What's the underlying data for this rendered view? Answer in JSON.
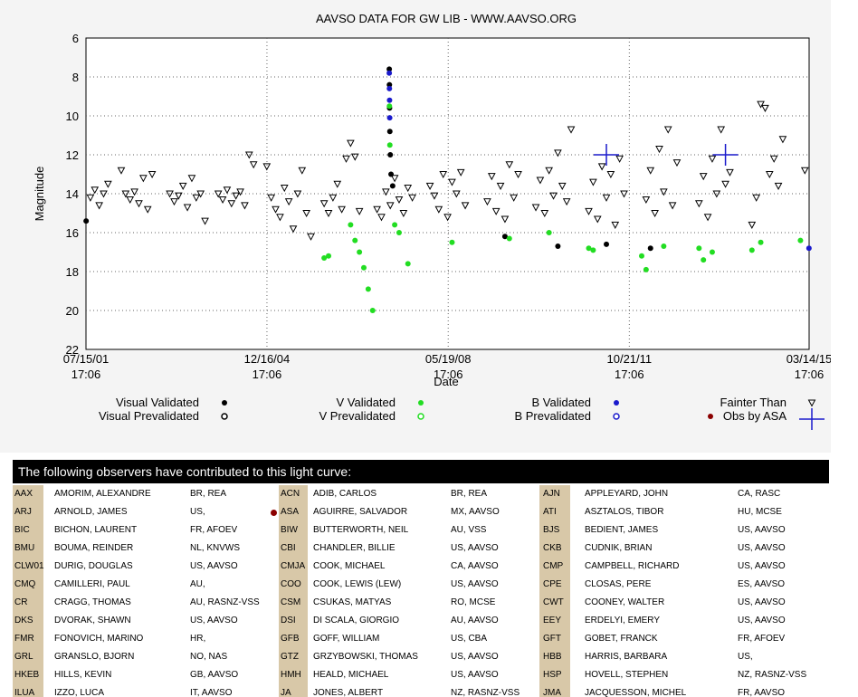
{
  "chart_data": {
    "type": "scatter",
    "title": "AAVSO DATA FOR GW LIB - WWW.AAVSO.ORG",
    "ylabel": "Magnitude",
    "xlabel": "Date",
    "x_ticks": [
      "07/15/01 17:06",
      "12/16/04 17:06",
      "05/19/08 17:06",
      "10/21/11 17:06",
      "03/14/15 17:06"
    ],
    "xlim": [
      "2001-07-15",
      "2015-03-14"
    ],
    "ylim": [
      22,
      6
    ],
    "y_inverted": true,
    "y_ticks": [
      6,
      8,
      10,
      12,
      14,
      16,
      18,
      20,
      22
    ],
    "grid": true,
    "series": [
      {
        "name": "Fainter Than",
        "marker": "open-triangle-down",
        "color": "#000000",
        "points": [
          [
            "2001-08",
            "14.2"
          ],
          [
            "2001-09",
            "13.8"
          ],
          [
            "2001-10",
            "14.6"
          ],
          [
            "2001-11",
            "14.0"
          ],
          [
            "2001-12",
            "13.5"
          ],
          [
            "2002-03",
            "12.8"
          ],
          [
            "2002-04",
            "14.0"
          ],
          [
            "2002-05",
            "14.3"
          ],
          [
            "2002-06",
            "13.9"
          ],
          [
            "2002-07",
            "14.5"
          ],
          [
            "2002-08",
            "13.2"
          ],
          [
            "2002-09",
            "14.8"
          ],
          [
            "2002-10",
            "13.0"
          ],
          [
            "2003-02",
            "14.0"
          ],
          [
            "2003-03",
            "14.4"
          ],
          [
            "2003-04",
            "14.1"
          ],
          [
            "2003-05",
            "13.6"
          ],
          [
            "2003-06",
            "14.7"
          ],
          [
            "2003-07",
            "13.2"
          ],
          [
            "2003-08",
            "14.2"
          ],
          [
            "2003-09",
            "14.0"
          ],
          [
            "2003-10",
            "15.4"
          ],
          [
            "2004-01",
            "14.0"
          ],
          [
            "2004-02",
            "14.3"
          ],
          [
            "2004-03",
            "13.8"
          ],
          [
            "2004-04",
            "14.5"
          ],
          [
            "2004-05",
            "14.1"
          ],
          [
            "2004-06",
            "13.9"
          ],
          [
            "2004-07",
            "14.6"
          ],
          [
            "2004-08",
            "12.0"
          ],
          [
            "2004-09",
            "12.5"
          ],
          [
            "2004-12",
            "12.6"
          ],
          [
            "2005-01",
            "14.2"
          ],
          [
            "2005-02",
            "14.8"
          ],
          [
            "2005-03",
            "15.2"
          ],
          [
            "2005-04",
            "13.7"
          ],
          [
            "2005-05",
            "14.4"
          ],
          [
            "2005-06",
            "15.8"
          ],
          [
            "2005-07",
            "14.0"
          ],
          [
            "2005-08",
            "12.8"
          ],
          [
            "2005-09",
            "15.0"
          ],
          [
            "2005-10",
            "16.2"
          ],
          [
            "2006-01",
            "14.5"
          ],
          [
            "2006-02",
            "15.0"
          ],
          [
            "2006-03",
            "14.2"
          ],
          [
            "2006-04",
            "13.5"
          ],
          [
            "2006-05",
            "14.8"
          ],
          [
            "2006-06",
            "12.2"
          ],
          [
            "2006-07",
            "11.4"
          ],
          [
            "2006-08",
            "12.1"
          ],
          [
            "2006-09",
            "14.9"
          ],
          [
            "2007-01",
            "14.8"
          ],
          [
            "2007-02",
            "15.2"
          ],
          [
            "2007-03",
            "13.9"
          ],
          [
            "2007-04",
            "14.6"
          ],
          [
            "2007-05",
            "13.2"
          ],
          [
            "2007-06",
            "14.3"
          ],
          [
            "2007-07",
            "15.0"
          ],
          [
            "2007-08",
            "13.7"
          ],
          [
            "2007-09",
            "14.2"
          ],
          [
            "2008-01",
            "13.6"
          ],
          [
            "2008-02",
            "14.1"
          ],
          [
            "2008-03",
            "14.8"
          ],
          [
            "2008-04",
            "13.0"
          ],
          [
            "2008-05",
            "15.2"
          ],
          [
            "2008-06",
            "13.4"
          ],
          [
            "2008-07",
            "14.0"
          ],
          [
            "2008-08",
            "12.9"
          ],
          [
            "2008-09",
            "14.6"
          ],
          [
            "2009-02",
            "14.4"
          ],
          [
            "2009-03",
            "13.1"
          ],
          [
            "2009-04",
            "14.9"
          ],
          [
            "2009-05",
            "13.6"
          ],
          [
            "2009-06",
            "15.3"
          ],
          [
            "2009-07",
            "12.5"
          ],
          [
            "2009-08",
            "14.2"
          ],
          [
            "2009-09",
            "13.0"
          ],
          [
            "2010-01",
            "14.7"
          ],
          [
            "2010-02",
            "13.3"
          ],
          [
            "2010-03",
            "15.0"
          ],
          [
            "2010-04",
            "12.8"
          ],
          [
            "2010-05",
            "14.1"
          ],
          [
            "2010-06",
            "11.9"
          ],
          [
            "2010-07",
            "13.6"
          ],
          [
            "2010-08",
            "14.4"
          ],
          [
            "2010-09",
            "10.7"
          ],
          [
            "2011-01",
            "14.9"
          ],
          [
            "2011-02",
            "13.4"
          ],
          [
            "2011-03",
            "15.3"
          ],
          [
            "2011-04",
            "12.6"
          ],
          [
            "2011-05",
            "14.2"
          ],
          [
            "2011-06",
            "13.0"
          ],
          [
            "2011-07",
            "15.6"
          ],
          [
            "2011-08",
            "12.2"
          ],
          [
            "2011-09",
            "14.0"
          ],
          [
            "2012-02",
            "14.3"
          ],
          [
            "2012-03",
            "12.8"
          ],
          [
            "2012-04",
            "15.0"
          ],
          [
            "2012-05",
            "11.7"
          ],
          [
            "2012-06",
            "13.9"
          ],
          [
            "2012-07",
            "10.7"
          ],
          [
            "2012-08",
            "14.6"
          ],
          [
            "2012-09",
            "12.4"
          ],
          [
            "2013-02",
            "14.5"
          ],
          [
            "2013-03",
            "13.1"
          ],
          [
            "2013-04",
            "15.2"
          ],
          [
            "2013-05",
            "12.2"
          ],
          [
            "2013-06",
            "14.0"
          ],
          [
            "2013-07",
            "10.7"
          ],
          [
            "2013-08",
            "13.5"
          ],
          [
            "2013-09",
            "12.9"
          ],
          [
            "2014-02",
            "15.6"
          ],
          [
            "2014-03",
            "14.2"
          ],
          [
            "2014-04",
            "9.4"
          ],
          [
            "2014-05",
            "9.6"
          ],
          [
            "2014-06",
            "13.0"
          ],
          [
            "2014-07",
            "12.2"
          ],
          [
            "2014-08",
            "13.6"
          ],
          [
            "2014-09",
            "11.2"
          ],
          [
            "2015-02",
            "12.8"
          ]
        ]
      },
      {
        "name": "Visual Validated",
        "marker": "filled-circle",
        "color": "#000000",
        "points": [
          [
            "2001-07-16",
            "15.4"
          ],
          [
            "2007-04-08",
            "7.6"
          ],
          [
            "2007-04-09",
            "8.4"
          ],
          [
            "2007-04-10",
            "9.6"
          ],
          [
            "2007-04-12",
            "10.8"
          ],
          [
            "2007-04-15",
            "12.0"
          ],
          [
            "2007-04-20",
            "13.0"
          ],
          [
            "2007-05-01",
            "13.6"
          ],
          [
            "2009-06",
            "16.2"
          ],
          [
            "2010-06",
            "16.7"
          ],
          [
            "2011-05",
            "16.6"
          ],
          [
            "2012-03",
            "16.8"
          ]
        ]
      },
      {
        "name": "V Validated",
        "marker": "filled-circle",
        "color": "#22dd22",
        "points": [
          [
            "2006-01",
            "17.3"
          ],
          [
            "2006-02",
            "17.2"
          ],
          [
            "2006-07",
            "15.6"
          ],
          [
            "2006-08",
            "16.4"
          ],
          [
            "2006-09",
            "17.0"
          ],
          [
            "2006-10",
            "17.8"
          ],
          [
            "2006-11",
            "18.9"
          ],
          [
            "2006-12",
            "20.0"
          ],
          [
            "2007-04-09",
            "9.5"
          ],
          [
            "2007-04-12",
            "11.5"
          ],
          [
            "2007-05",
            "15.6"
          ],
          [
            "2007-06",
            "16.0"
          ],
          [
            "2007-08",
            "17.6"
          ],
          [
            "2008-06",
            "16.5"
          ],
          [
            "2009-07",
            "16.3"
          ],
          [
            "2010-04",
            "16.0"
          ],
          [
            "2011-01",
            "16.8"
          ],
          [
            "2011-02",
            "16.9"
          ],
          [
            "2012-01",
            "17.2"
          ],
          [
            "2012-02",
            "17.9"
          ],
          [
            "2012-06",
            "16.7"
          ],
          [
            "2013-02",
            "16.8"
          ],
          [
            "2013-03",
            "17.4"
          ],
          [
            "2013-05",
            "17.0"
          ],
          [
            "2014-02",
            "16.9"
          ],
          [
            "2014-04",
            "16.5"
          ],
          [
            "2015-01",
            "16.4"
          ]
        ]
      },
      {
        "name": "B Validated",
        "marker": "filled-circle",
        "color": "#1a1acc",
        "points": [
          [
            "2007-04-08",
            "7.8"
          ],
          [
            "2007-04-09",
            "8.6"
          ],
          [
            "2007-04-10",
            "9.2"
          ],
          [
            "2007-04-11",
            "10.1"
          ],
          [
            "2015-03-13",
            "16.8"
          ]
        ]
      },
      {
        "name": "Obs by ASA",
        "marker": "cross",
        "color": "#1a1acc",
        "points": [
          [
            "2011-05",
            "12.0"
          ],
          [
            "2013-08",
            "12.0"
          ]
        ]
      }
    ],
    "legend": {
      "col1": [
        {
          "label": "Visual Validated",
          "marker": "filled-black"
        },
        {
          "label": "Visual Prevalidated",
          "marker": "open-black"
        }
      ],
      "col2": [
        {
          "label": "V Validated",
          "marker": "filled-green"
        },
        {
          "label": "V Prevalidated",
          "marker": "open-green"
        }
      ],
      "col3": [
        {
          "label": "B Validated",
          "marker": "filled-blue"
        },
        {
          "label": "B Prevalidated",
          "marker": "open-blue"
        }
      ],
      "col4": [
        {
          "label": "Fainter Than",
          "marker": "triangle"
        },
        {
          "label": "Obs by ASA",
          "marker": "cross"
        }
      ]
    }
  },
  "observers_section": {
    "heading": "The following observers have contributed to this light curve:",
    "rows": [
      [
        [
          "AAX",
          "AMORIM, ALEXANDRE",
          "BR, REA"
        ],
        [
          "ACN",
          "ADIB, CARLOS",
          "BR, REA"
        ],
        [
          "AJN",
          "APPLEYARD, JOHN",
          "CA, RASC"
        ]
      ],
      [
        [
          "ARJ",
          "ARNOLD, JAMES",
          "US,"
        ],
        [
          "ASA",
          "AGUIRRE, SALVADOR",
          "MX, AAVSO"
        ],
        [
          "ATI",
          "ASZTALOS, TIBOR",
          "HU, MCSE"
        ]
      ],
      [
        [
          "BIC",
          "BICHON, LAURENT",
          "FR, AFOEV"
        ],
        [
          "BIW",
          "BUTTERWORTH, NEIL",
          "AU, VSS"
        ],
        [
          "BJS",
          "BEDIENT, JAMES",
          "US, AAVSO"
        ]
      ],
      [
        [
          "BMU",
          "BOUMA, REINDER",
          "NL, KNVWS"
        ],
        [
          "CBI",
          "CHANDLER, BILLIE",
          "US, AAVSO"
        ],
        [
          "CKB",
          "CUDNIK, BRIAN",
          "US, AAVSO"
        ]
      ],
      [
        [
          "CLW01",
          "DURIG, DOUGLAS",
          "US, AAVSO"
        ],
        [
          "CMJA",
          "COOK, MICHAEL",
          "CA, AAVSO"
        ],
        [
          "CMP",
          "CAMPBELL, RICHARD",
          "US, AAVSO"
        ]
      ],
      [
        [
          "CMQ",
          "CAMILLERI, PAUL",
          "AU,"
        ],
        [
          "COO",
          "COOK, LEWIS (LEW)",
          "US, AAVSO"
        ],
        [
          "CPE",
          "CLOSAS, PERE",
          "ES, AAVSO"
        ]
      ],
      [
        [
          "CR",
          "CRAGG, THOMAS",
          "AU, RASNZ-VSS"
        ],
        [
          "CSM",
          "CSUKAS, MATYAS",
          "RO, MCSE"
        ],
        [
          "CWT",
          "COONEY, WALTER",
          "US, AAVSO"
        ]
      ],
      [
        [
          "DKS",
          "DVORAK, SHAWN",
          "US, AAVSO"
        ],
        [
          "DSI",
          "DI SCALA, GIORGIO",
          "AU, AAVSO"
        ],
        [
          "EEY",
          "ERDELYI, EMERY",
          "US, AAVSO"
        ]
      ],
      [
        [
          "FMR",
          "FONOVICH, MARINO",
          "HR,"
        ],
        [
          "GFB",
          "GOFF, WILLIAM",
          "US, CBA"
        ],
        [
          "GFT",
          "GOBET, FRANCK",
          "FR, AFOEV"
        ]
      ],
      [
        [
          "GRL",
          "GRANSLO, BJORN",
          "NO, NAS"
        ],
        [
          "GTZ",
          "GRZYBOWSKI, THOMAS",
          "US, AAVSO"
        ],
        [
          "HBB",
          "HARRIS, BARBARA",
          "US,"
        ]
      ],
      [
        [
          "HKEB",
          "HILLS, KEVIN",
          "GB, AAVSO"
        ],
        [
          "HMH",
          "HEALD, MICHAEL",
          "US, AAVSO"
        ],
        [
          "HSP",
          "HOVELL, STEPHEN",
          "NZ, RASNZ-VSS"
        ]
      ],
      [
        [
          "ILUA",
          "IZZO, LUCA",
          "IT, AAVSO"
        ],
        [
          "JA",
          "JONES, ALBERT",
          "NZ, RASNZ-VSS"
        ],
        [
          "JMA",
          "JACQUESSON, MICHEL",
          "FR, AAVSO"
        ]
      ]
    ]
  }
}
